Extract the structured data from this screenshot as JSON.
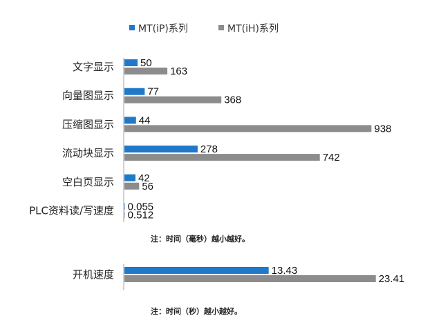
{
  "colors": {
    "series1": "#1f78c8",
    "series2": "#8c8c8c",
    "axis": "#a0a0a0"
  },
  "legend": {
    "items": [
      {
        "label": "MT(iP)系列",
        "color": "#1f78c8"
      },
      {
        "label": "MT(iH)系列",
        "color": "#8c8c8c"
      }
    ]
  },
  "chart_data": [
    {
      "type": "bar",
      "orientation": "horizontal",
      "categories": [
        "文字显示",
        "向量图显示",
        "压缩图显示",
        "流动块显示",
        "空白页显示",
        "PLC资料读/写速度"
      ],
      "series": [
        {
          "name": "MT(iP)系列",
          "values": [
            50,
            77,
            44,
            278,
            42,
            0.055
          ],
          "labels": [
            "50",
            "77",
            "44",
            "278",
            "42",
            "0.055"
          ]
        },
        {
          "name": "MT(iH)系列",
          "values": [
            163,
            368,
            938,
            742,
            56,
            0.512
          ],
          "labels": [
            "163",
            "368",
            "938",
            "742",
            "56",
            "0.512"
          ]
        }
      ],
      "xlim": [
        0,
        1000
      ],
      "legend": "top",
      "grid": false,
      "note": "注：时间（毫秒）越小越好。"
    },
    {
      "type": "bar",
      "orientation": "horizontal",
      "categories": [
        "开机速度"
      ],
      "series": [
        {
          "name": "MT(iP)系列",
          "values": [
            13.43
          ],
          "labels": [
            "13.43"
          ]
        },
        {
          "name": "MT(iH)系列",
          "values": [
            23.41
          ],
          "labels": [
            "23.41"
          ]
        }
      ],
      "xlim": [
        0,
        24.2
      ],
      "grid": false,
      "note": "注：时间（秒）越小越好。"
    }
  ]
}
